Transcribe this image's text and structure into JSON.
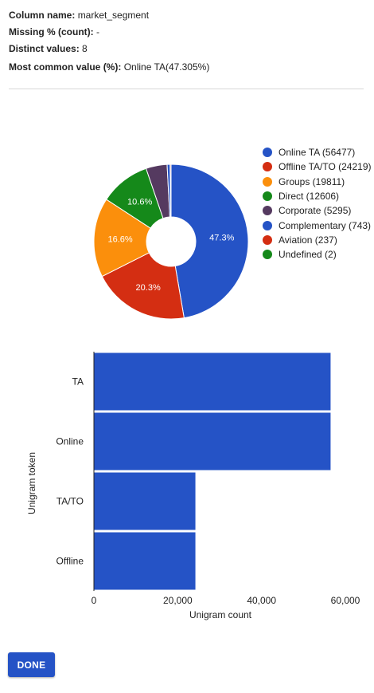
{
  "stats": {
    "column_name_label": "Column name:",
    "column_name_value": "market_segment",
    "missing_label": "Missing % (count):",
    "missing_value": "-",
    "distinct_label": "Distinct values:",
    "distinct_value": "8",
    "most_common_label": "Most common value (%):",
    "most_common_value": "Online TA(47.305%)"
  },
  "chart_data": [
    {
      "type": "pie",
      "donut": true,
      "categories": [
        "Online TA",
        "Offline TA/TO",
        "Groups",
        "Direct",
        "Corporate",
        "Complementary",
        "Aviation",
        "Undefined"
      ],
      "values": [
        56477,
        24219,
        19811,
        12606,
        5295,
        743,
        237,
        2
      ],
      "colors": [
        "#2553c6",
        "#d42e12",
        "#fb8f0c",
        "#15891a",
        "#553a60",
        "#2553c6",
        "#d42e12",
        "#15891a"
      ],
      "slice_labels": [
        "47.3%",
        "20.3%",
        "16.6%",
        "10.6%",
        "",
        "",
        "",
        ""
      ],
      "legend_entries": [
        "Online TA (56477)",
        "Offline TA/TO (24219)",
        "Groups (19811)",
        "Direct (12606)",
        "Corporate (5295)",
        "Complementary (743)",
        "Aviation (237)",
        "Undefined (2)"
      ],
      "legend_position": "right"
    },
    {
      "type": "bar",
      "orientation": "horizontal",
      "categories": [
        "TA",
        "Online",
        "TA/TO",
        "Offline"
      ],
      "values": [
        56477,
        56477,
        24219,
        24219
      ],
      "color": "#2553c6",
      "xlabel": "Unigram count",
      "ylabel": "Unigram token",
      "xlim": [
        0,
        60000
      ],
      "xticks": [
        "0",
        "20,000",
        "40,000",
        "60,000"
      ],
      "xtick_values": [
        0,
        20000,
        40000,
        60000
      ],
      "grid": false
    }
  ],
  "done_label": "DONE"
}
